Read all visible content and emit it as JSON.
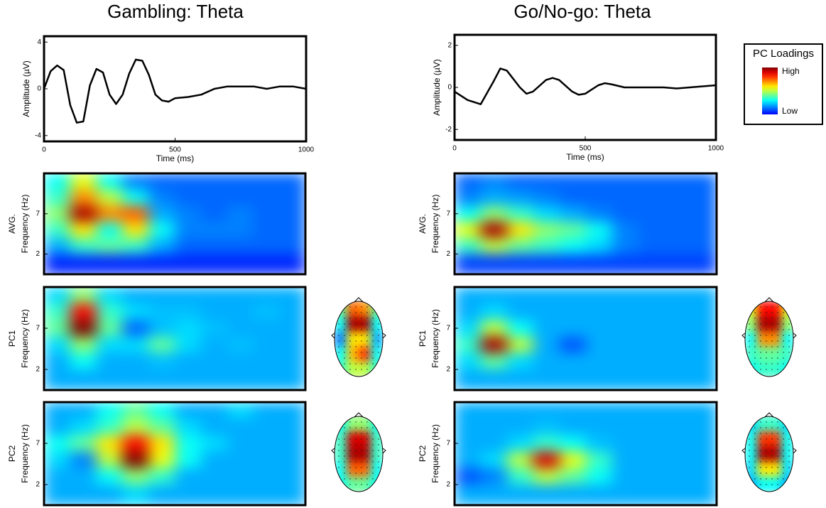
{
  "chart_data": [
    {
      "type": "line",
      "title": "Gambling: Theta",
      "xlabel": "Time (ms)",
      "ylabel": "Amplitude (µV)",
      "x": [
        0,
        25,
        50,
        75,
        100,
        125,
        150,
        175,
        200,
        225,
        250,
        275,
        300,
        325,
        350,
        375,
        400,
        425,
        450,
        475,
        500,
        550,
        600,
        650,
        700,
        750,
        800,
        850,
        900,
        950,
        1000
      ],
      "values": [
        0,
        1.5,
        2,
        1.6,
        -1.4,
        -2.9,
        -2.8,
        0.3,
        1.7,
        1.4,
        -0.5,
        -1.3,
        -0.5,
        1.3,
        2.5,
        2.4,
        1.2,
        -0.5,
        -1,
        -1.1,
        -0.8,
        -0.7,
        -0.5,
        0,
        0.2,
        0.2,
        0.2,
        0,
        0.2,
        0.2,
        0
      ],
      "color": "#000000",
      "xlim": [
        0,
        1000
      ],
      "xticks": [
        0,
        500,
        1000
      ],
      "ylim": [
        -4.5,
        4.5
      ],
      "yticks": [
        -4,
        0,
        4
      ]
    },
    {
      "type": "line",
      "title": "Go/No-go: Theta",
      "xlabel": "Time (ms)",
      "ylabel": "Amplitude (µV)",
      "x": [
        0,
        50,
        100,
        150,
        175,
        200,
        250,
        275,
        300,
        350,
        375,
        400,
        450,
        475,
        500,
        550,
        575,
        600,
        650,
        700,
        800,
        850,
        900,
        1000
      ],
      "values": [
        -0.2,
        -0.6,
        -0.8,
        0.3,
        0.9,
        0.8,
        0,
        -0.3,
        -0.2,
        0.35,
        0.45,
        0.35,
        -0.2,
        -0.35,
        -0.3,
        0.1,
        0.2,
        0.15,
        0,
        0,
        0,
        -0.05,
        0,
        0.1
      ],
      "color": "#000000",
      "xlim": [
        0,
        1000
      ],
      "xticks": [
        0,
        500,
        1000
      ],
      "ylim": [
        -2.5,
        2.5
      ],
      "yticks": [
        -2,
        0,
        2
      ]
    },
    {
      "type": "heatmap",
      "row_label": "AVG.",
      "ylabel": "Frequency (Hz)",
      "xlim": [
        0,
        1000
      ],
      "ylim": [
        -0.5,
        12
      ],
      "yticks": [
        2,
        7
      ],
      "x": [
        50,
        150,
        250,
        350,
        450,
        550,
        650,
        750,
        850,
        950
      ],
      "y": [
        11,
        9,
        7,
        5,
        3,
        1
      ],
      "z": [
        [
          0.3,
          0.55,
          0.3,
          0.15,
          0.12,
          0.12,
          0.12,
          0.12,
          0.12,
          0.12
        ],
        [
          0.35,
          0.7,
          0.5,
          0.3,
          0.15,
          0.12,
          0.12,
          0.12,
          0.12,
          0.12
        ],
        [
          0.45,
          0.95,
          0.7,
          0.75,
          0.2,
          0.15,
          0.12,
          0.15,
          0.12,
          0.12
        ],
        [
          0.35,
          0.6,
          0.3,
          0.6,
          0.3,
          0.15,
          0.15,
          0.15,
          0.12,
          0.12
        ],
        [
          0.2,
          0.35,
          0.4,
          0.35,
          0.2,
          0.12,
          0.12,
          0.12,
          0.12,
          0.12
        ],
        [
          0.05,
          0.05,
          0.05,
          0.05,
          0.05,
          0.05,
          0.05,
          0.05,
          0.05,
          0.05
        ]
      ]
    },
    {
      "type": "heatmap",
      "row_label": "PC1",
      "ylabel": "Frequency (Hz)",
      "xlim": [
        0,
        1000
      ],
      "ylim": [
        -0.5,
        12
      ],
      "yticks": [
        2,
        7
      ],
      "x": [
        50,
        150,
        250,
        350,
        450,
        550,
        650,
        750,
        850,
        950
      ],
      "y": [
        11,
        9,
        7,
        5,
        3,
        1
      ],
      "z": [
        [
          0.25,
          0.45,
          0.25,
          0.2,
          0.2,
          0.2,
          0.2,
          0.2,
          0.2,
          0.2
        ],
        [
          0.35,
          0.85,
          0.35,
          0.25,
          0.22,
          0.22,
          0.2,
          0.2,
          0.22,
          0.2
        ],
        [
          0.4,
          1,
          0.4,
          0.12,
          0.22,
          0.25,
          0.22,
          0.2,
          0.2,
          0.2
        ],
        [
          0.25,
          0.45,
          0.25,
          0.25,
          0.4,
          0.25,
          0.2,
          0.22,
          0.2,
          0.2
        ],
        [
          0.2,
          0.3,
          0.2,
          0.2,
          0.22,
          0.2,
          0.2,
          0.2,
          0.2,
          0.2
        ],
        [
          0.2,
          0.2,
          0.2,
          0.2,
          0.2,
          0.2,
          0.2,
          0.2,
          0.2,
          0.2
        ]
      ]
    },
    {
      "type": "heatmap",
      "row_label": "PC2",
      "ylabel": "Frequency (Hz)",
      "xlim": [
        0,
        1000
      ],
      "ylim": [
        -0.5,
        12
      ],
      "yticks": [
        2,
        7
      ],
      "x": [
        50,
        150,
        250,
        350,
        450,
        550,
        650,
        750,
        850,
        950
      ],
      "y": [
        11,
        9,
        7,
        5,
        3,
        1
      ],
      "z": [
        [
          0.2,
          0.2,
          0.3,
          0.4,
          0.3,
          0.2,
          0.2,
          0.25,
          0.2,
          0.2
        ],
        [
          0.2,
          0.25,
          0.35,
          0.5,
          0.4,
          0.25,
          0.2,
          0.2,
          0.2,
          0.2
        ],
        [
          0.3,
          0.4,
          0.6,
          0.85,
          0.6,
          0.3,
          0.25,
          0.2,
          0.2,
          0.2
        ],
        [
          0.25,
          0.15,
          0.5,
          1,
          0.55,
          0.3,
          0.2,
          0.2,
          0.2,
          0.2
        ],
        [
          0.2,
          0.2,
          0.3,
          0.45,
          0.35,
          0.2,
          0.2,
          0.2,
          0.2,
          0.2
        ],
        [
          0.2,
          0.2,
          0.2,
          0.25,
          0.2,
          0.2,
          0.2,
          0.2,
          0.2,
          0.2
        ]
      ]
    },
    {
      "type": "heatmap",
      "row_label": "AVG.",
      "ylabel": "Frequency (Hz)",
      "xlim": [
        0,
        1000
      ],
      "ylim": [
        -0.5,
        12
      ],
      "yticks": [
        2,
        7
      ],
      "x": [
        50,
        150,
        250,
        350,
        450,
        550,
        650,
        750,
        850,
        950
      ],
      "y": [
        11,
        9,
        7,
        5,
        3,
        1
      ],
      "z": [
        [
          0.12,
          0.15,
          0.12,
          0.12,
          0.12,
          0.12,
          0.12,
          0.12,
          0.12,
          0.12
        ],
        [
          0.15,
          0.2,
          0.18,
          0.15,
          0.12,
          0.12,
          0.12,
          0.12,
          0.12,
          0.12
        ],
        [
          0.3,
          0.45,
          0.35,
          0.25,
          0.2,
          0.15,
          0.12,
          0.12,
          0.12,
          0.12
        ],
        [
          0.55,
          0.95,
          0.6,
          0.45,
          0.4,
          0.3,
          0.15,
          0.12,
          0.12,
          0.12
        ],
        [
          0.35,
          0.5,
          0.4,
          0.35,
          0.3,
          0.25,
          0.15,
          0.12,
          0.12,
          0.12
        ],
        [
          0.08,
          0.08,
          0.08,
          0.08,
          0.08,
          0.08,
          0.08,
          0.08,
          0.08,
          0.08
        ]
      ]
    },
    {
      "type": "heatmap",
      "row_label": "PC1",
      "ylabel": "Frequency (Hz)",
      "xlim": [
        0,
        1000
      ],
      "ylim": [
        -0.5,
        12
      ],
      "yticks": [
        2,
        7
      ],
      "x": [
        50,
        150,
        250,
        350,
        450,
        550,
        650,
        750,
        850,
        950
      ],
      "y": [
        11,
        9,
        7,
        5,
        3,
        1
      ],
      "z": [
        [
          0.2,
          0.2,
          0.2,
          0.2,
          0.2,
          0.2,
          0.2,
          0.2,
          0.2,
          0.2
        ],
        [
          0.2,
          0.25,
          0.2,
          0.2,
          0.2,
          0.2,
          0.2,
          0.2,
          0.2,
          0.2
        ],
        [
          0.25,
          0.5,
          0.3,
          0.2,
          0.2,
          0.2,
          0.2,
          0.2,
          0.2,
          0.2
        ],
        [
          0.35,
          0.95,
          0.5,
          0.2,
          0.1,
          0.2,
          0.2,
          0.2,
          0.2,
          0.2
        ],
        [
          0.25,
          0.4,
          0.25,
          0.2,
          0.2,
          0.2,
          0.2,
          0.2,
          0.2,
          0.2
        ],
        [
          0.2,
          0.2,
          0.2,
          0.2,
          0.2,
          0.2,
          0.2,
          0.2,
          0.2,
          0.2
        ]
      ]
    },
    {
      "type": "heatmap",
      "row_label": "PC2",
      "ylabel": "Frequency (Hz)",
      "xlim": [
        0,
        1000
      ],
      "ylim": [
        -0.5,
        12
      ],
      "yticks": [
        2,
        7
      ],
      "x": [
        50,
        150,
        250,
        350,
        450,
        550,
        650,
        750,
        850,
        950
      ],
      "y": [
        11,
        9,
        7,
        5,
        3,
        1
      ],
      "z": [
        [
          0.2,
          0.2,
          0.2,
          0.2,
          0.2,
          0.2,
          0.2,
          0.2,
          0.2,
          0.2
        ],
        [
          0.2,
          0.2,
          0.2,
          0.22,
          0.2,
          0.2,
          0.2,
          0.2,
          0.2,
          0.2
        ],
        [
          0.2,
          0.2,
          0.25,
          0.35,
          0.3,
          0.22,
          0.2,
          0.2,
          0.2,
          0.2
        ],
        [
          0.2,
          0.25,
          0.5,
          0.9,
          0.55,
          0.35,
          0.2,
          0.2,
          0.2,
          0.2
        ],
        [
          0.1,
          0.15,
          0.35,
          0.5,
          0.4,
          0.3,
          0.2,
          0.2,
          0.2,
          0.2
        ],
        [
          0.2,
          0.2,
          0.2,
          0.2,
          0.2,
          0.2,
          0.2,
          0.2,
          0.2,
          0.2
        ]
      ]
    },
    {
      "type": "topomap",
      "z": [
        [
          0.4,
          0.75,
          0.7,
          0.4
        ],
        [
          0.3,
          0.95,
          0.95,
          0.3
        ],
        [
          0.15,
          0.6,
          0.6,
          0.2
        ],
        [
          0.3,
          0.65,
          0.8,
          0.3
        ],
        [
          0.35,
          0.5,
          0.5,
          0.35
        ]
      ]
    },
    {
      "type": "topomap",
      "z": [
        [
          0.3,
          0.45,
          0.45,
          0.3
        ],
        [
          0.35,
          0.9,
          0.9,
          0.35
        ],
        [
          0.35,
          0.95,
          0.95,
          0.35
        ],
        [
          0.3,
          0.75,
          0.75,
          0.3
        ],
        [
          0.3,
          0.4,
          0.4,
          0.3
        ]
      ]
    },
    {
      "type": "topomap",
      "z": [
        [
          0.55,
          0.85,
          0.85,
          0.55
        ],
        [
          0.45,
          0.95,
          0.95,
          0.45
        ],
        [
          0.3,
          0.7,
          0.7,
          0.3
        ],
        [
          0.35,
          0.4,
          0.4,
          0.35
        ],
        [
          0.3,
          0.35,
          0.35,
          0.3
        ]
      ]
    },
    {
      "type": "topomap",
      "z": [
        [
          0.25,
          0.35,
          0.35,
          0.25
        ],
        [
          0.3,
          0.8,
          0.8,
          0.3
        ],
        [
          0.3,
          0.95,
          0.95,
          0.3
        ],
        [
          0.25,
          0.6,
          0.6,
          0.25
        ],
        [
          0.2,
          0.3,
          0.3,
          0.2
        ]
      ]
    }
  ],
  "colorbar": {
    "title": "PC Loadings",
    "high": "High",
    "low": "Low",
    "colormap": "jet",
    "zlim": [
      0,
      1
    ]
  }
}
